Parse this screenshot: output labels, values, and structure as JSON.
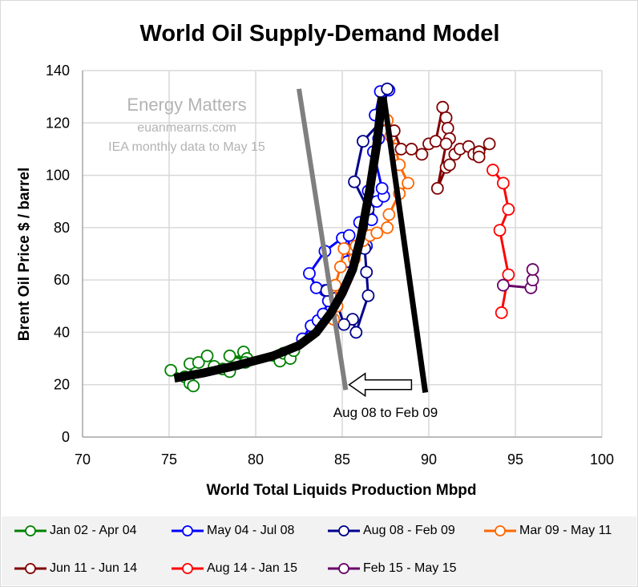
{
  "chart_data": {
    "type": "scatter",
    "title": "World Oil Supply-Demand Model",
    "xlabel": "World Total Liquids Production Mbpd",
    "ylabel": "Brent Oil Price $ / barrel",
    "xlim": [
      70,
      100
    ],
    "ylim": [
      0,
      140
    ],
    "xticks": [
      70,
      75,
      80,
      85,
      90,
      95,
      100
    ],
    "yticks": [
      0,
      20,
      40,
      60,
      80,
      100,
      120,
      140
    ],
    "grid": true,
    "legend_position": "bottom",
    "watermark": [
      "Energy Matters",
      "euanmearns.com",
      "IEA monthly data to May 15"
    ],
    "annotation": "Aug 08 to Feb 09",
    "annotation_arrow": {
      "from": [
        89.0,
        20
      ],
      "to": [
        85.4,
        20
      ]
    },
    "demand_line": [
      [
        82.5,
        133
      ],
      [
        85.2,
        18
      ]
    ],
    "supply_curve": [
      [
        75.3,
        22.5
      ],
      [
        77,
        24.5
      ],
      [
        79,
        27.5
      ],
      [
        81,
        31
      ],
      [
        82.5,
        35
      ],
      [
        83.5,
        40
      ],
      [
        84.3,
        47
      ],
      [
        85,
        55
      ],
      [
        85.6,
        64
      ],
      [
        86.1,
        77
      ],
      [
        86.6,
        95
      ],
      [
        87.0,
        112
      ],
      [
        87.3,
        130
      ]
    ],
    "supply_drop_line": [
      [
        87.4,
        130
      ],
      [
        89.8,
        17
      ]
    ],
    "series": [
      {
        "name": "Jan 02 - Apr 04",
        "color": "#008000",
        "points": [
          [
            75.1,
            25.5
          ],
          [
            75.9,
            23
          ],
          [
            76.2,
            20.5
          ],
          [
            76.4,
            19.5
          ],
          [
            76.2,
            28
          ],
          [
            76.7,
            28.5
          ],
          [
            77.2,
            31
          ],
          [
            77.6,
            27
          ],
          [
            78.1,
            26
          ],
          [
            78.5,
            25
          ],
          [
            78.9,
            28
          ],
          [
            79.3,
            32.5
          ],
          [
            79.5,
            30
          ],
          [
            79.4,
            28.5
          ],
          [
            78.5,
            31
          ],
          [
            81.4,
            29
          ],
          [
            81.6,
            32
          ],
          [
            82.0,
            30
          ],
          [
            82.2,
            33
          ]
        ]
      },
      {
        "name": "May 04 - Jul 08",
        "color": "#0000ff",
        "points": [
          [
            82.7,
            37.5
          ],
          [
            83.2,
            42.5
          ],
          [
            83.6,
            44.5
          ],
          [
            83.9,
            47
          ],
          [
            84.2,
            52
          ],
          [
            84.0,
            56
          ],
          [
            84.5,
            55
          ],
          [
            83.5,
            57
          ],
          [
            83.1,
            62.5
          ],
          [
            84.0,
            71
          ],
          [
            85.0,
            76
          ],
          [
            85.4,
            77
          ],
          [
            85.3,
            67
          ],
          [
            85.9,
            72
          ],
          [
            86.4,
            73
          ],
          [
            86.0,
            82
          ],
          [
            86.5,
            85
          ],
          [
            86.7,
            83
          ],
          [
            86.5,
            94
          ],
          [
            87.0,
            90
          ],
          [
            87.4,
            92
          ],
          [
            87.3,
            95
          ],
          [
            86.8,
            109
          ],
          [
            87.1,
            114
          ],
          [
            86.9,
            123
          ],
          [
            87.2,
            132
          ],
          [
            87.7,
            132.5
          ]
        ]
      },
      {
        "name": "Aug 08 - Feb 09",
        "color": "#00008b",
        "points": [
          [
            87.6,
            133
          ],
          [
            87.3,
            121
          ],
          [
            86.2,
            113
          ],
          [
            85.7,
            97.5
          ],
          [
            86.5,
            87
          ],
          [
            86.3,
            72
          ],
          [
            86.4,
            63
          ],
          [
            86.5,
            54
          ],
          [
            85.8,
            40
          ],
          [
            85.6,
            45
          ],
          [
            85.1,
            43
          ],
          [
            84.6,
            53
          ],
          [
            84.1,
            56
          ]
        ]
      },
      {
        "name": "Mar 09 - May 11",
        "color": "#ff6600",
        "points": [
          [
            84.5,
            45
          ],
          [
            84.7,
            50
          ],
          [
            84.6,
            58
          ],
          [
            84.9,
            65
          ],
          [
            85.1,
            72
          ],
          [
            85.7,
            68
          ],
          [
            85.8,
            73
          ],
          [
            86.2,
            75
          ],
          [
            86.6,
            77
          ],
          [
            87.0,
            78
          ],
          [
            87.6,
            80
          ],
          [
            87.7,
            85
          ],
          [
            88.3,
            93
          ],
          [
            88.8,
            97
          ],
          [
            88.3,
            104
          ],
          [
            88.1,
            110
          ],
          [
            87.8,
            115
          ],
          [
            87.6,
            121
          ]
        ]
      },
      {
        "name": "Jun 11 - Jun 14",
        "color": "#800000",
        "points": [
          [
            88.0,
            117
          ],
          [
            88.4,
            110
          ],
          [
            89.0,
            110
          ],
          [
            89.6,
            108
          ],
          [
            90.0,
            112
          ],
          [
            90.4,
            113
          ],
          [
            90.8,
            126
          ],
          [
            91.0,
            122
          ],
          [
            91.1,
            118
          ],
          [
            91.2,
            114
          ],
          [
            91.0,
            112
          ],
          [
            90.5,
            95
          ],
          [
            91.0,
            103
          ],
          [
            91.2,
            104
          ],
          [
            91.5,
            108
          ],
          [
            91.8,
            110
          ],
          [
            92.3,
            111
          ],
          [
            92.6,
            108
          ],
          [
            92.9,
            109
          ],
          [
            93.5,
            112
          ],
          [
            92.9,
            107
          ]
        ]
      },
      {
        "name": "Aug 14 - Jan 15",
        "color": "#ff0000",
        "points": [
          [
            93.7,
            102
          ],
          [
            94.3,
            97
          ],
          [
            94.6,
            87
          ],
          [
            94.1,
            79
          ],
          [
            94.6,
            62
          ],
          [
            94.2,
            47.5
          ]
        ]
      },
      {
        "name": "Feb 15 - May 15",
        "color": "#660066",
        "points": [
          [
            94.3,
            58
          ],
          [
            95.9,
            57
          ],
          [
            96.0,
            60
          ],
          [
            96.0,
            64
          ]
        ]
      }
    ]
  }
}
